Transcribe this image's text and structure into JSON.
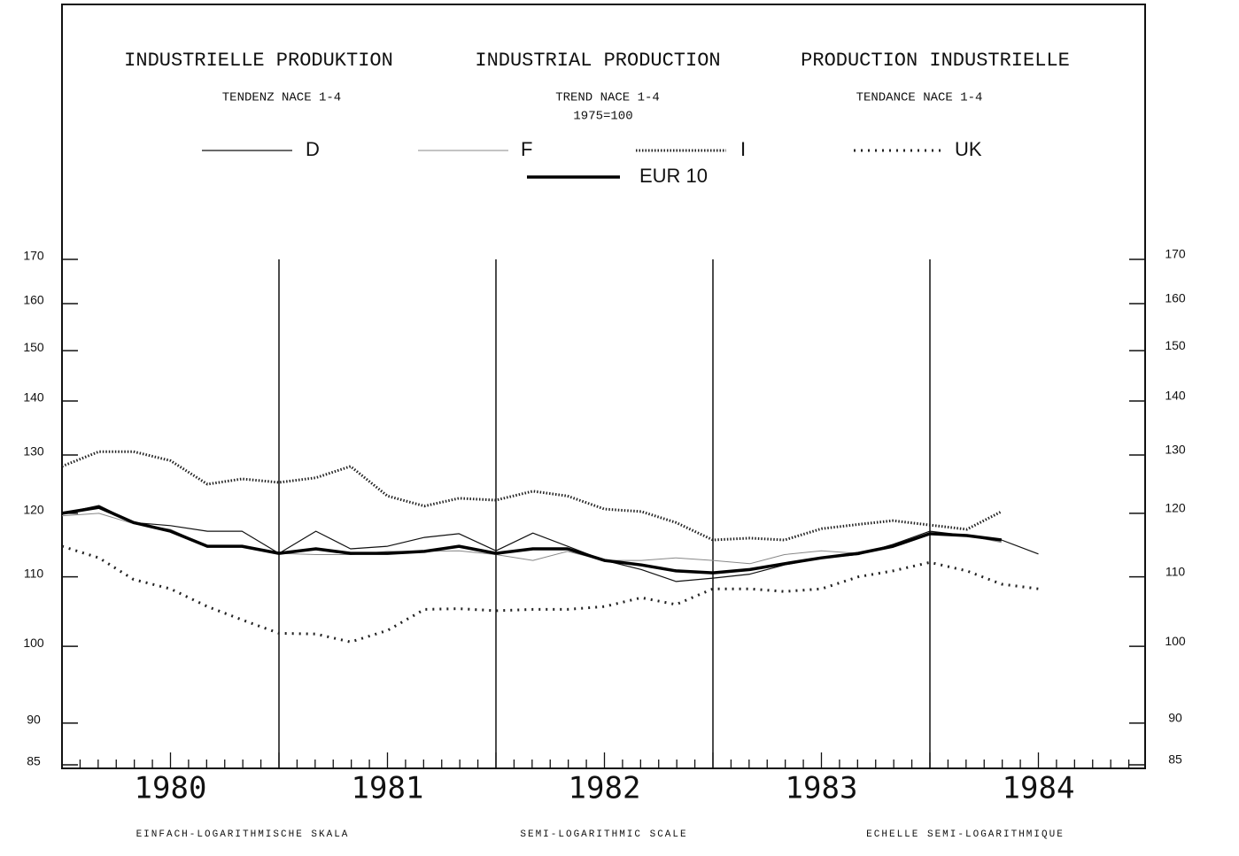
{
  "chart_data": {
    "type": "line",
    "titles": [
      "INDUSTRIELLE PRODUKTION",
      "INDUSTRIAL PRODUCTION",
      "PRODUCTION INDUSTRIELLE"
    ],
    "subtitles": [
      "TENDENZ   NACE 1-4",
      "TREND   NACE 1-4",
      "TENDANCE   NACE 1-4"
    ],
    "base_note": "1975=100",
    "footers": [
      "EINFACH-LOGARITHMISCHE SKALA",
      "SEMI-LOGARITHMIC SCALE",
      "ECHELLE SEMI-LOGARITHMIQUE"
    ],
    "x": [
      1980,
      1980.17,
      1980.33,
      1980.5,
      1980.67,
      1980.83,
      1981,
      1981.17,
      1981.33,
      1981.5,
      1981.67,
      1981.83,
      1982,
      1982.17,
      1982.33,
      1982.5,
      1982.67,
      1982.83,
      1983,
      1983.17,
      1983.33,
      1983.5,
      1983.67,
      1983.83,
      1984,
      1984.17,
      1984.33,
      1984.5
    ],
    "xlim": [
      1980,
      1985
    ],
    "xticks": [
      {
        "value": 1980.5,
        "label": "1980"
      },
      {
        "value": 1981.5,
        "label": "1981"
      },
      {
        "value": 1982.5,
        "label": "1982"
      },
      {
        "value": 1983.5,
        "label": "1983"
      },
      {
        "value": 1984.5,
        "label": "1984"
      }
    ],
    "vlines": [
      1981,
      1982,
      1983,
      1984
    ],
    "ylim": [
      85,
      170
    ],
    "yticks": [
      85,
      90,
      100,
      110,
      120,
      130,
      140,
      150,
      160,
      170
    ],
    "y2lim": [
      85,
      170
    ],
    "y2ticks": [
      85,
      90,
      100,
      110,
      120,
      130,
      140,
      150,
      160,
      170
    ],
    "log_scale": true,
    "series": [
      {
        "name": "D",
        "color": "#111111",
        "width": 1.2,
        "dash": "none",
        "values": [
          120,
          121.3,
          118.5,
          118,
          117.1,
          117.1,
          113.6,
          117.1,
          114.3,
          114.7,
          116.1,
          116.7,
          114,
          116.8,
          114.7,
          112.5,
          111.1,
          109.3,
          109.8,
          110.4,
          111.8,
          112.9,
          113.4,
          115,
          117.1,
          116.4,
          115.7,
          113.5
        ]
      },
      {
        "name": "F",
        "color": "#888888",
        "width": 1,
        "dash": "none",
        "values": [
          119.6,
          120,
          118.3,
          117.4,
          114.7,
          114.7,
          113.6,
          113.4,
          113.4,
          113.9,
          113.9,
          114,
          113.4,
          112.5,
          113.9,
          112.5,
          112.5,
          112.9,
          112.5,
          112,
          113.4,
          114,
          113.6,
          114.7,
          116.7,
          116.4,
          115.3,
          null
        ]
      },
      {
        "name": "I",
        "color": "#222222",
        "width": 3,
        "dash": "1.5 2",
        "values": [
          128,
          130.6,
          130.6,
          129,
          124.9,
          125.8,
          125.2,
          126,
          128,
          122.9,
          121.2,
          122.5,
          122.2,
          123.7,
          122.9,
          120.7,
          120.3,
          118.5,
          115.7,
          116,
          115.7,
          117.5,
          118.2,
          118.8,
          118.1,
          117.4,
          120.3,
          null
        ]
      },
      {
        "name": "UK",
        "color": "#222222",
        "width": 3,
        "dash": "2 6",
        "values": [
          114.7,
          112.9,
          109.6,
          108.2,
          105.6,
          103.7,
          101.8,
          101.7,
          100.6,
          102.2,
          105.2,
          105.3,
          105,
          105.2,
          105.2,
          105.6,
          106.9,
          105.9,
          108.2,
          108.2,
          107.8,
          108.2,
          110,
          110.9,
          112.2,
          110.9,
          108.9,
          108.2
        ]
      },
      {
        "name": "EUR 10",
        "color": "#000000",
        "width": 3.5,
        "dash": "none",
        "values": [
          120,
          121,
          118.5,
          117.1,
          114.7,
          114.7,
          113.6,
          114.3,
          113.6,
          113.6,
          113.9,
          114.7,
          113.6,
          114.3,
          114.3,
          112.5,
          111.8,
          110.9,
          110.6,
          111.1,
          112,
          112.9,
          113.6,
          114.7,
          116.7,
          116.4,
          115.7,
          null
        ]
      }
    ]
  }
}
